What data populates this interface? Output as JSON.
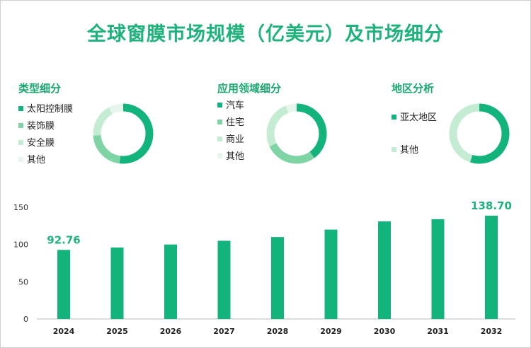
{
  "title": "全球窗膜市场规模（亿美元）及市场细分",
  "colors": {
    "primary": "#13b47b",
    "mid": "#7fd4a3",
    "light": "#c4ecd3",
    "pale": "#e6f6ec",
    "title": "#1db37a"
  },
  "donuts": [
    {
      "title": "类型细分",
      "legend": [
        "太阳控制膜",
        "装饰膜",
        "安全膜",
        "其他"
      ],
      "values": [
        52,
        22,
        18,
        8
      ]
    },
    {
      "title": "应用领域细分",
      "legend": [
        "汽车",
        "住宅",
        "商业",
        "其他"
      ],
      "values": [
        40,
        28,
        26,
        6
      ]
    },
    {
      "title": "地区分析",
      "legend": [
        "亚太地区",
        "其他"
      ],
      "values": [
        55,
        45
      ]
    }
  ],
  "chart_data": {
    "type": "bar",
    "categories": [
      "2024",
      "2025",
      "2026",
      "2027",
      "2028",
      "2029",
      "2030",
      "2031",
      "2032"
    ],
    "values": [
      92.76,
      96,
      100,
      105,
      110,
      120,
      131,
      134,
      138.7
    ],
    "data_labels": {
      "2024": "92.76",
      "2032": "138.70"
    },
    "ylim": [
      0,
      150
    ],
    "yticks": [
      0,
      50,
      100,
      150
    ],
    "xlabel": "",
    "ylabel": "",
    "grid": false
  }
}
